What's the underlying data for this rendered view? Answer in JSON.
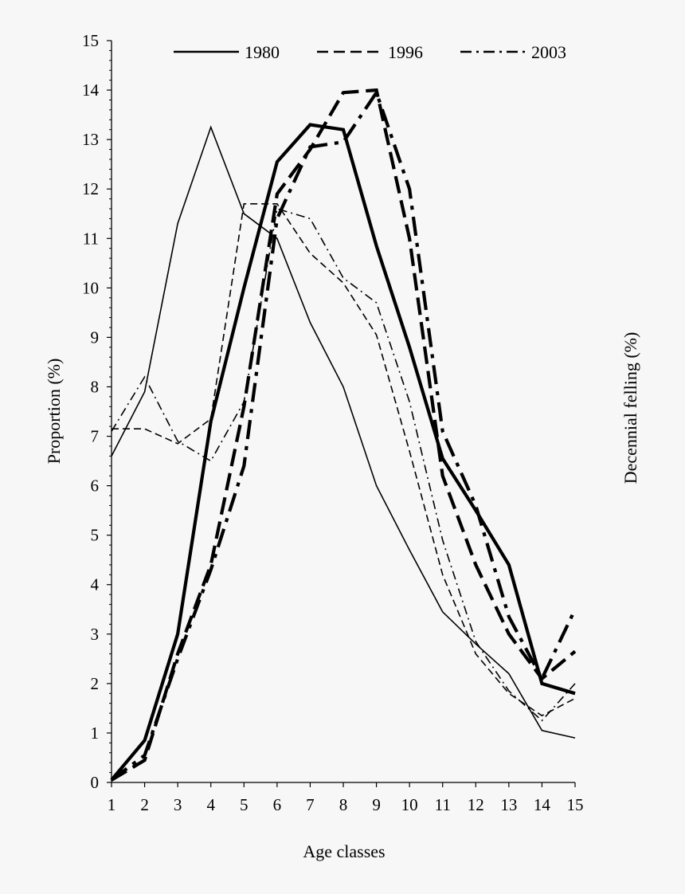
{
  "chart_data": {
    "type": "line",
    "title": "",
    "xlabel": "Age classes",
    "ylabel": "Proportion (%)",
    "y2label": "Decennial felling (%)",
    "xlim": [
      1,
      15
    ],
    "ylim": [
      0,
      15
    ],
    "x": [
      1,
      2,
      3,
      4,
      5,
      6,
      7,
      8,
      9,
      10,
      11,
      12,
      13,
      14,
      15
    ],
    "xticks": [
      "1",
      "2",
      "3",
      "4",
      "5",
      "6",
      "7",
      "8",
      "9",
      "10",
      "11",
      "12",
      "13",
      "14",
      "15"
    ],
    "yticks": [
      "0",
      "1",
      "2",
      "3",
      "4",
      "5",
      "6",
      "7",
      "8",
      "9",
      "10",
      "11",
      "12",
      "13",
      "14",
      "15"
    ],
    "grid": false,
    "legend_position": "top",
    "series": [
      {
        "name": "1980",
        "group": "proportion",
        "dash": "solid",
        "weight": "thin",
        "values": [
          6.6,
          7.9,
          11.3,
          13.25,
          11.5,
          11.0,
          9.3,
          8.0,
          6.0,
          4.7,
          3.45,
          2.8,
          2.2,
          1.05,
          0.9
        ]
      },
      {
        "name": "1996",
        "group": "proportion",
        "dash": "dashed",
        "weight": "thin",
        "values": [
          7.15,
          7.15,
          6.85,
          7.35,
          11.7,
          11.7,
          10.7,
          10.1,
          9.05,
          6.7,
          4.2,
          2.6,
          1.8,
          1.35,
          1.7
        ]
      },
      {
        "name": "2003",
        "group": "proportion",
        "dash": "dashdot",
        "weight": "thin",
        "values": [
          7.1,
          8.2,
          6.9,
          6.5,
          7.7,
          11.6,
          11.4,
          10.2,
          9.7,
          7.7,
          4.9,
          2.85,
          1.85,
          1.25,
          2.0
        ]
      },
      {
        "name": "1980",
        "group": "felling",
        "dash": "solid",
        "weight": "thick",
        "values": [
          0.05,
          0.85,
          3.0,
          7.3,
          10.0,
          12.55,
          13.3,
          13.2,
          10.85,
          8.8,
          6.55,
          5.5,
          4.4,
          2.0,
          1.8
        ]
      },
      {
        "name": "1996",
        "group": "felling",
        "dash": "dashed",
        "weight": "thick",
        "values": [
          0.05,
          0.45,
          2.6,
          4.4,
          7.6,
          11.9,
          12.8,
          13.95,
          14.0,
          11.0,
          6.2,
          4.4,
          3.0,
          2.1,
          2.65
        ]
      },
      {
        "name": "2003",
        "group": "felling",
        "dash": "dashdot",
        "weight": "thick",
        "values": [
          0.05,
          0.55,
          2.5,
          4.3,
          6.4,
          11.4,
          12.85,
          12.95,
          13.95,
          12.0,
          7.1,
          5.6,
          3.35,
          2.1,
          3.5
        ]
      }
    ],
    "legend": [
      {
        "label": "1980",
        "dash": "solid"
      },
      {
        "label": "1996",
        "dash": "dashed"
      },
      {
        "label": "2003",
        "dash": "dashdot"
      }
    ]
  }
}
